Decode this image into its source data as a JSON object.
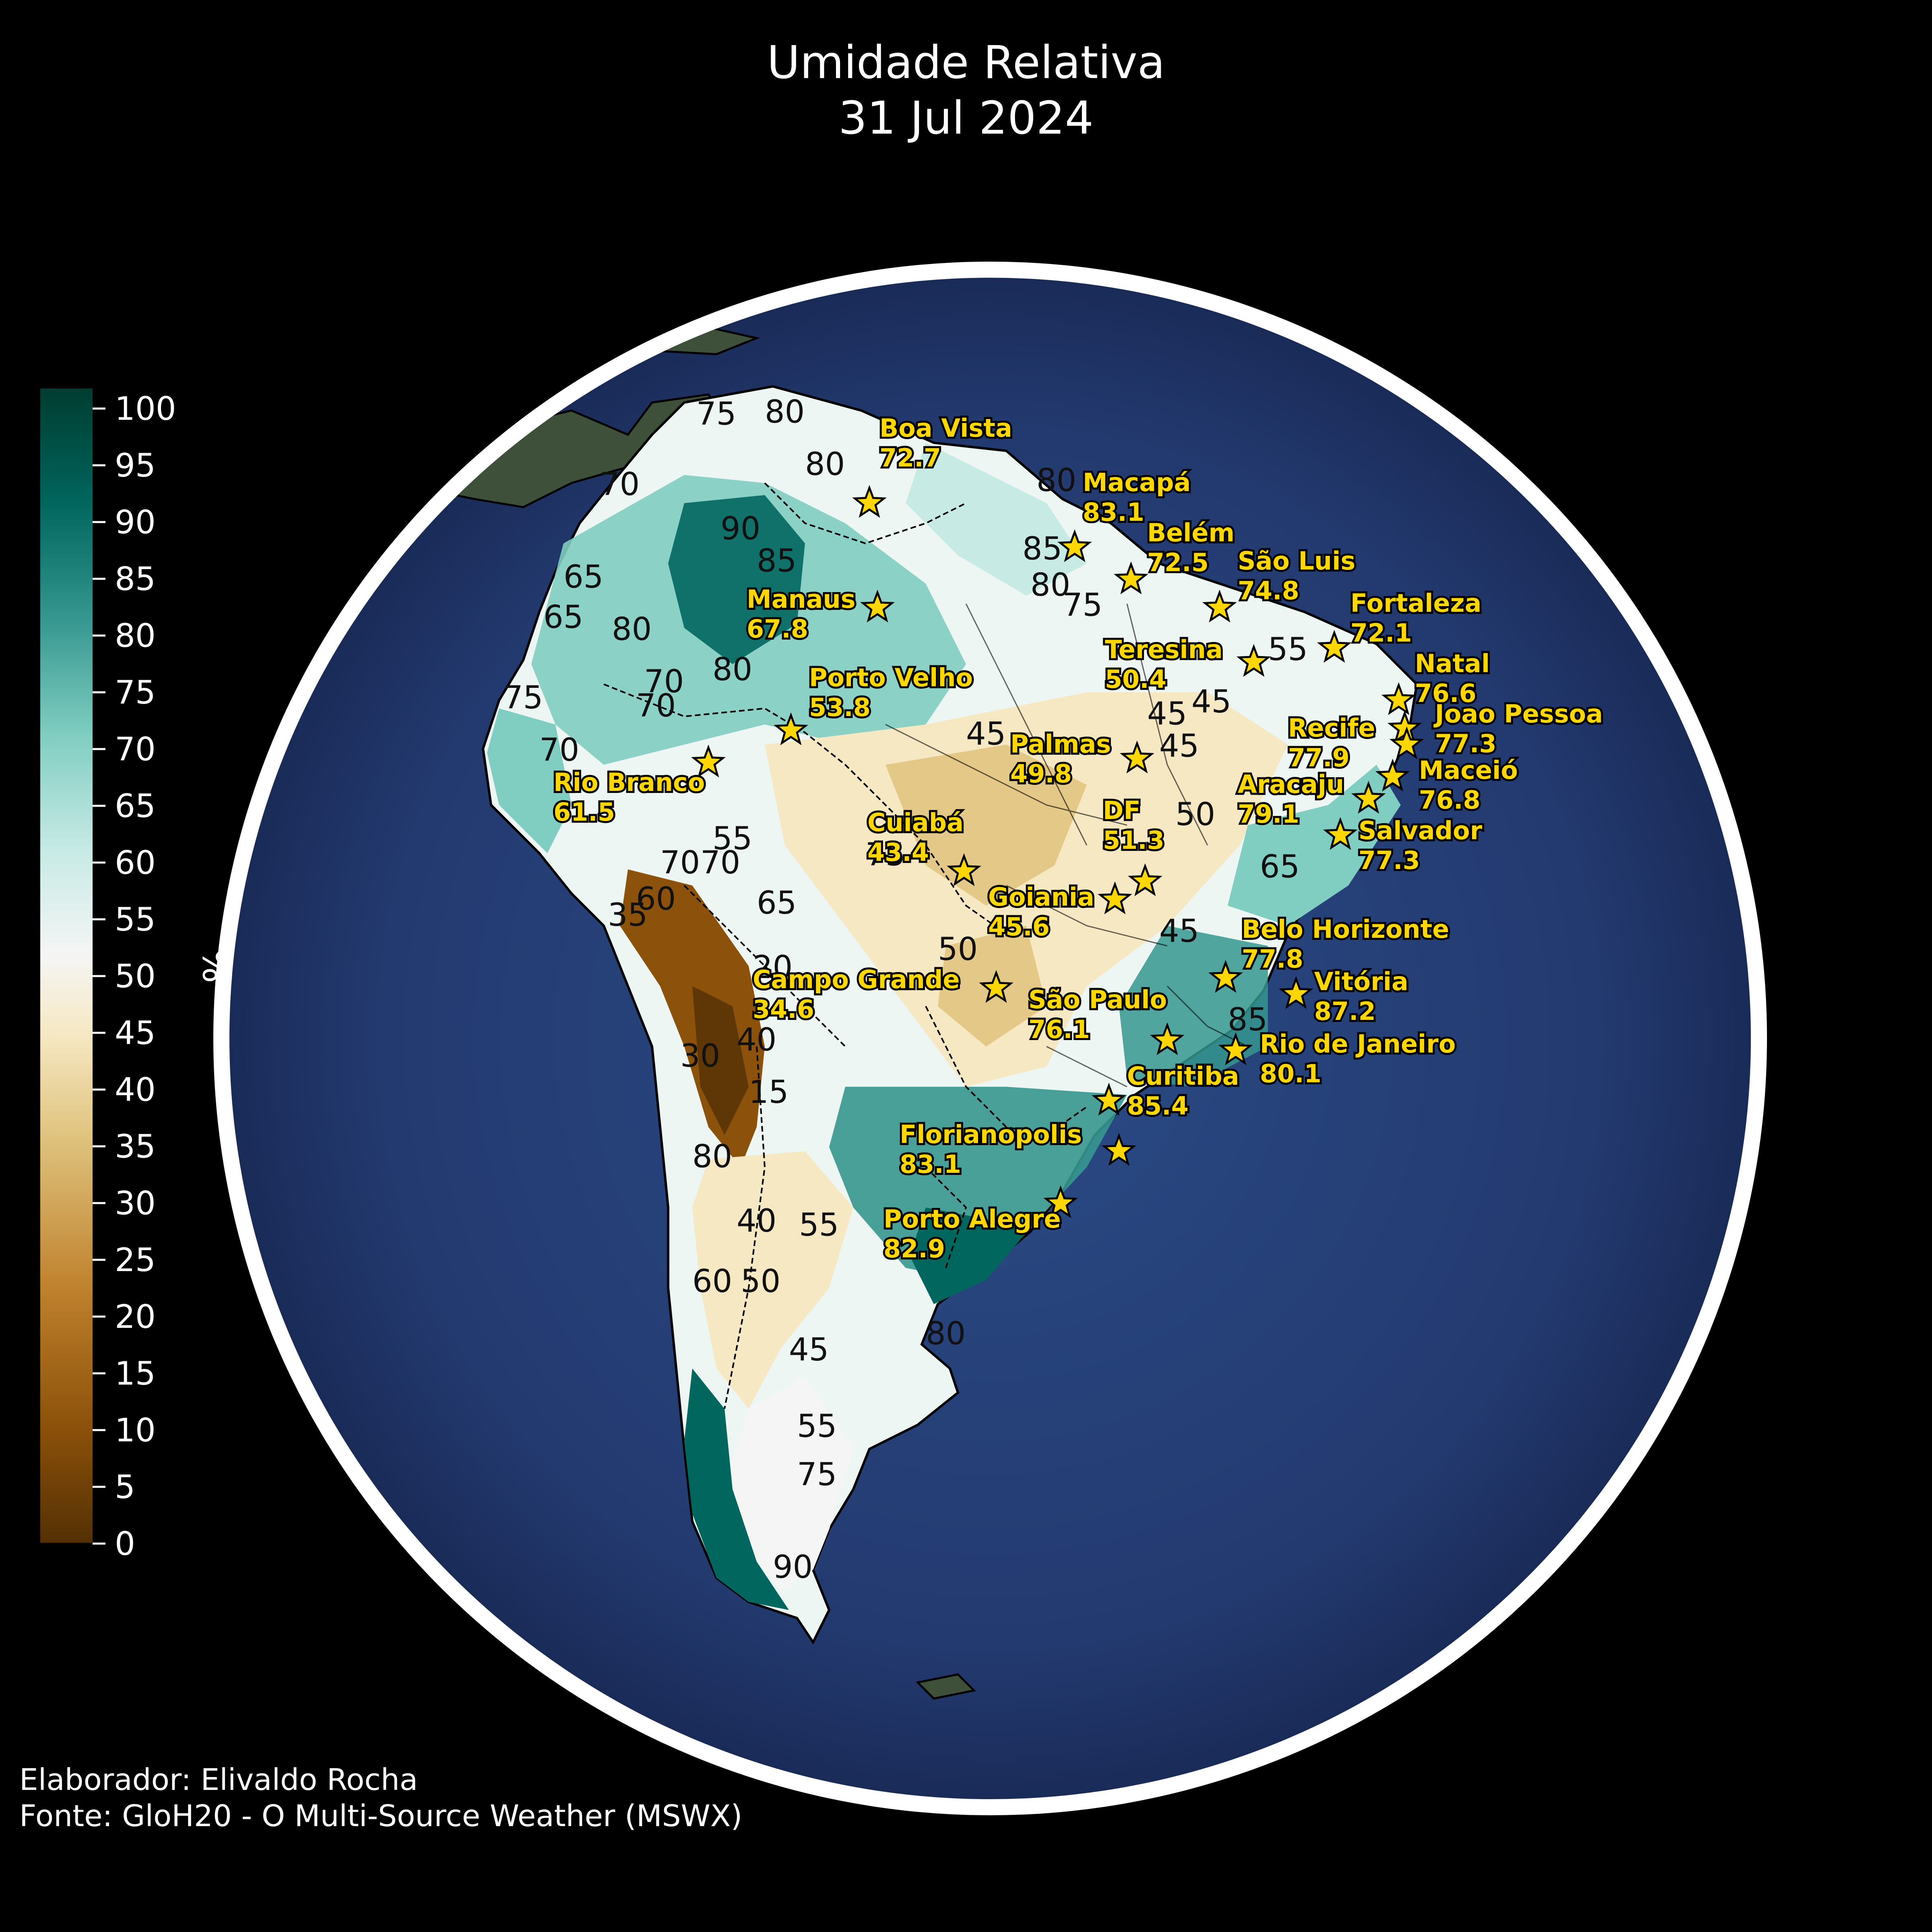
{
  "title": "Umidade Relativa",
  "date": "31 Jul 2024",
  "colorbar": {
    "label": "%",
    "ticks": [
      "0",
      "5",
      "10",
      "15",
      "20",
      "25",
      "30",
      "35",
      "40",
      "45",
      "50",
      "55",
      "60",
      "65",
      "70",
      "75",
      "80",
      "85",
      "90",
      "95",
      "100"
    ],
    "colors": [
      "#543005",
      "#8c510a",
      "#bf812d",
      "#dfc27d",
      "#f6e8c3",
      "#f5f5f5",
      "#c7eae5",
      "#80cdc1",
      "#35978f",
      "#01665e",
      "#003c30"
    ]
  },
  "cities": [
    {
      "name": "Boa Vista",
      "value": "72.7"
    },
    {
      "name": "Macapá",
      "value": "83.1"
    },
    {
      "name": "Belém",
      "value": "72.5"
    },
    {
      "name": "São Luis",
      "value": "74.8"
    },
    {
      "name": "Fortaleza",
      "value": "72.1"
    },
    {
      "name": "Manaus",
      "value": "67.8"
    },
    {
      "name": "Teresina",
      "value": "50.4"
    },
    {
      "name": "Natal",
      "value": "76.6"
    },
    {
      "name": "Porto Velho",
      "value": "53.8"
    },
    {
      "name": "Joao Pessoa",
      "value": "77.3"
    },
    {
      "name": "Recife",
      "value": "77.9"
    },
    {
      "name": "Palmas",
      "value": "49.8"
    },
    {
      "name": "Maceió",
      "value": "76.8"
    },
    {
      "name": "Rio Branco",
      "value": "61.5"
    },
    {
      "name": "Aracaju",
      "value": "79.1"
    },
    {
      "name": "Cuiabá",
      "value": "43.4"
    },
    {
      "name": "DF",
      "value": "51.3"
    },
    {
      "name": "Salvador",
      "value": "77.3"
    },
    {
      "name": "Goiania",
      "value": "45.6"
    },
    {
      "name": "Belo Horizonte",
      "value": "77.8"
    },
    {
      "name": "Campo Grande",
      "value": "34.6"
    },
    {
      "name": "Vitória",
      "value": "87.2"
    },
    {
      "name": "São Paulo",
      "value": "76.1"
    },
    {
      "name": "Rio de Janeiro",
      "value": "80.1"
    },
    {
      "name": "Curitiba",
      "value": "85.4"
    },
    {
      "name": "Florianopolis",
      "value": "83.1"
    },
    {
      "name": "Porto Alegre",
      "value": "82.9"
    }
  ],
  "contour_labels": [
    "75",
    "80",
    "80",
    "70",
    "80",
    "65",
    "85",
    "90",
    "80",
    "75",
    "85",
    "65",
    "80",
    "70",
    "80",
    "70",
    "75",
    "45",
    "45",
    "45",
    "55",
    "50",
    "45",
    "50",
    "65",
    "85",
    "75",
    "55",
    "70",
    "70",
    "70",
    "65",
    "60",
    "35",
    "20",
    "40",
    "15",
    "30",
    "80",
    "55",
    "40",
    "50",
    "45",
    "60",
    "45",
    "55",
    "75",
    "80",
    "90"
  ],
  "credits": {
    "author": "Elaborador: Elivaldo Rocha",
    "source": "Fonte: GloH20 - O Multi-Source Weather (MSWX)"
  }
}
